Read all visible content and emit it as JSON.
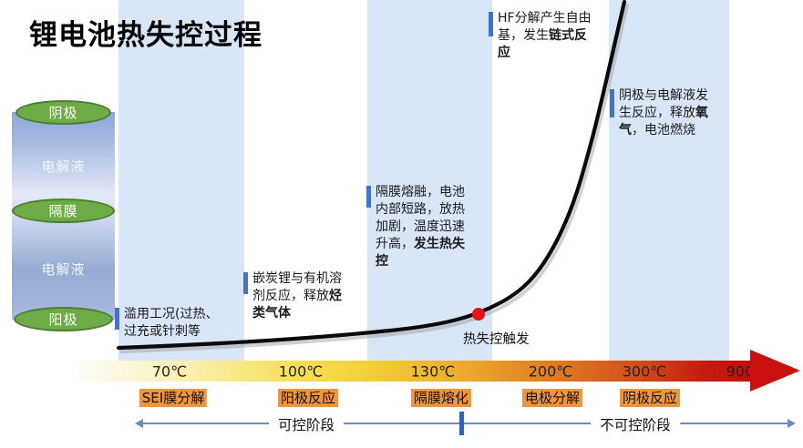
{
  "title": "锂电池热失控过程",
  "battery": {
    "cathode": "阴极",
    "electrolyte_top": "电解液",
    "separator": "隔膜",
    "electrolyte_bottom": "电解液",
    "anode": "阳极"
  },
  "annotations": {
    "abuse": {
      "lines": [
        [
          {
            "text": "滥用工况(过热、"
          }
        ],
        [
          {
            "text": "过充或针刺等"
          }
        ]
      ]
    },
    "anode_reaction": {
      "lines": [
        [
          {
            "text": "嵌炭锂与有机溶"
          }
        ],
        [
          {
            "text": "剂反应，释放"
          },
          {
            "text": "烃",
            "bold": true
          }
        ],
        [
          {
            "text": "类气体",
            "bold": true
          }
        ]
      ]
    },
    "separator_melt": {
      "lines": [
        [
          {
            "text": "隔膜熔融，电池"
          }
        ],
        [
          {
            "text": "内部短路，放热"
          }
        ],
        [
          {
            "text": "加剧，温度迅速"
          }
        ],
        [
          {
            "text": "升高，"
          },
          {
            "text": "发生热失",
            "bold": true
          }
        ],
        [
          {
            "text": "控",
            "bold": true
          }
        ]
      ]
    },
    "hf_decomposition": {
      "lines": [
        [
          {
            "text": "HF分解产生自由"
          }
        ],
        [
          {
            "text": "基，发生"
          },
          {
            "text": "链式反",
            "bold": true
          }
        ],
        [
          {
            "text": "应",
            "bold": true
          }
        ]
      ]
    },
    "cathode_reaction": {
      "lines": [
        [
          {
            "text": "阴极与电解液发"
          }
        ],
        [
          {
            "text": "生反应，释放"
          },
          {
            "text": "氧",
            "bold": true
          }
        ],
        [
          {
            "text": "气",
            "bold": true
          },
          {
            "text": "，电池燃烧"
          }
        ]
      ]
    }
  },
  "trigger": {
    "label": "热失控触发"
  },
  "axis": {
    "temps": [
      "70℃",
      "100℃",
      "130℃",
      "200℃",
      "300℃",
      "900℃"
    ]
  },
  "stages": [
    "SEI膜分解",
    "阳极反应",
    "隔膜熔化",
    "电极分解",
    "阴极反应"
  ],
  "phases": {
    "controllable": "可控阶段",
    "uncontrollable": "不可控阶段"
  },
  "colors": {
    "band_blue": "#D9E6F7",
    "accent_blue": "#4472C4",
    "divider_blue": "#3662AE",
    "phase_line_blue": "#6B8CC7",
    "stage_orange": "#F0953C",
    "electrode_green": "#6CAB45",
    "electrode_green_border": "#4F7D31",
    "curve_black": "#000000",
    "trigger_dot_red": "#E81414",
    "axis_arrow_red": "#CB1110"
  }
}
